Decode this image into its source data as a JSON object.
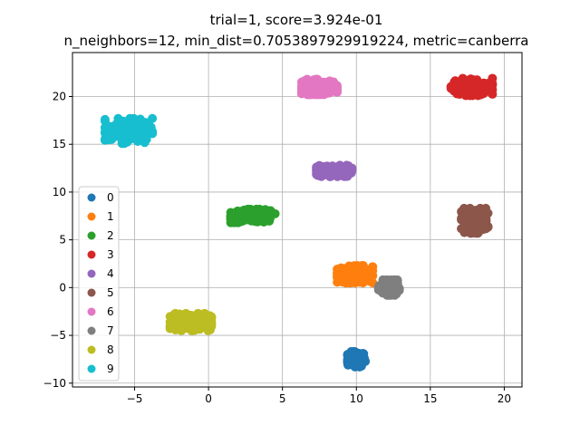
{
  "chart_data": {
    "type": "scatter",
    "title_line1": "trial=1, score=3.924e-01",
    "title_line2": "n_neighbors=12, min_dist=0.7053897929919224, metric=canberra",
    "xlabel": "",
    "ylabel": "",
    "xlim": [
      -9.2,
      21.2
    ],
    "ylim": [
      -10.4,
      24.6
    ],
    "x_ticks": [
      -5,
      0,
      5,
      10,
      15,
      20
    ],
    "x_tick_labels": [
      "−5",
      "0",
      "5",
      "10",
      "15",
      "20"
    ],
    "y_ticks": [
      -10,
      -5,
      0,
      5,
      10,
      15,
      20
    ],
    "y_tick_labels": [
      "−10",
      "−5",
      "0",
      "5",
      "10",
      "15",
      "20"
    ],
    "grid": true,
    "legend_placement": "center-left",
    "series": [
      {
        "name": "0",
        "color": "#1f77b4",
        "center": [
          10.0,
          -7.5
        ],
        "spread": [
          0.6,
          0.8
        ]
      },
      {
        "name": "1",
        "color": "#ff7f0e",
        "center": [
          9.9,
          1.4
        ],
        "spread": [
          1.2,
          0.9
        ]
      },
      {
        "name": "2",
        "color": "#2ca02c",
        "center": [
          3.0,
          7.5
        ],
        "spread": [
          1.5,
          0.7
        ]
      },
      {
        "name": "3",
        "color": "#d62728",
        "center": [
          17.8,
          21.0
        ],
        "spread": [
          1.4,
          0.9
        ]
      },
      {
        "name": "4",
        "color": "#9467bd",
        "center": [
          8.5,
          12.2
        ],
        "spread": [
          1.2,
          0.6
        ]
      },
      {
        "name": "5",
        "color": "#8c564b",
        "center": [
          18.0,
          7.0
        ],
        "spread": [
          0.9,
          1.3
        ]
      },
      {
        "name": "6",
        "color": "#e377c2",
        "center": [
          7.5,
          21.0
        ],
        "spread": [
          1.2,
          0.8
        ]
      },
      {
        "name": "7",
        "color": "#7f7f7f",
        "center": [
          12.2,
          0.0
        ],
        "spread": [
          0.7,
          0.8
        ]
      },
      {
        "name": "8",
        "color": "#bcbd22",
        "center": [
          -1.2,
          -3.6
        ],
        "spread": [
          1.4,
          0.9
        ]
      },
      {
        "name": "9",
        "color": "#17becf",
        "center": [
          -5.4,
          16.4
        ],
        "spread": [
          1.6,
          1.3
        ]
      }
    ]
  }
}
